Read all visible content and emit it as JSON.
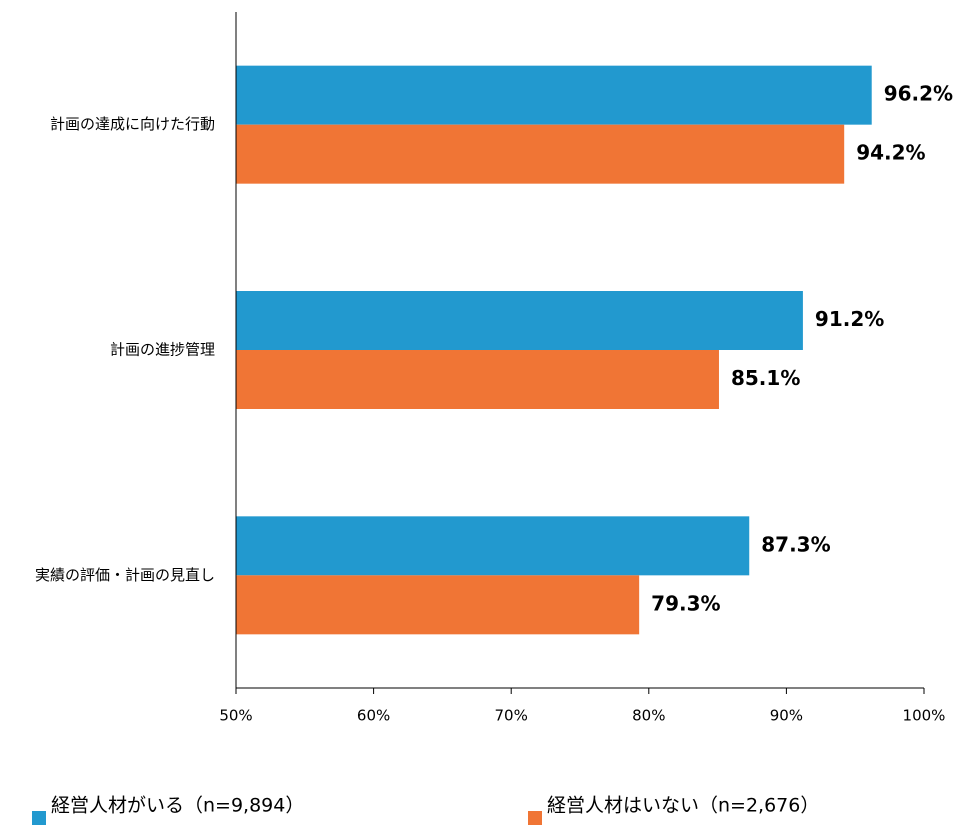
{
  "chart_data": {
    "type": "bar",
    "orientation": "horizontal",
    "categories": [
      "計画の達成に向けた行動",
      "計画の進捗管理",
      "実績の評価・計画の見直し"
    ],
    "series": [
      {
        "name": "経営人材がいる（n=9,894）",
        "color": "#2299cf",
        "values": [
          96.2,
          91.2,
          87.3
        ],
        "value_labels": [
          "96.2%",
          "91.2%",
          "87.3%"
        ]
      },
      {
        "name": "経営人材はいない（n=2,676）",
        "color": "#f07535",
        "values": [
          94.2,
          85.1,
          79.3
        ],
        "value_labels": [
          "94.2%",
          "85.1%",
          "79.3%"
        ]
      }
    ],
    "xlim": [
      50,
      100
    ],
    "xticks": [
      {
        "value": 50,
        "label": "50%"
      },
      {
        "value": 60,
        "label": "60%"
      },
      {
        "value": 70,
        "label": "70%"
      },
      {
        "value": 80,
        "label": "80%"
      },
      {
        "value": 90,
        "label": "90%"
      },
      {
        "value": 100,
        "label": "100%"
      }
    ],
    "legend": "bottom"
  }
}
